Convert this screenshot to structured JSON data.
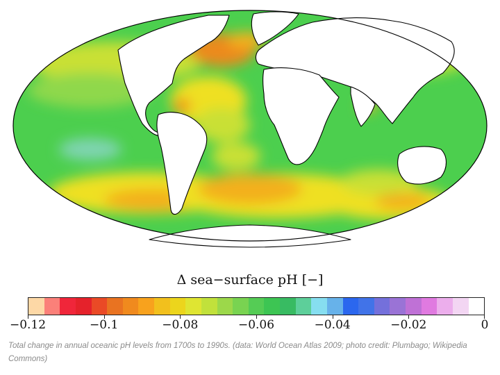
{
  "map": {
    "projection": "Mollweide",
    "colors": {
      "land": "#ffffff",
      "coastline": "#000000",
      "ocean_green": "#4ccf4e",
      "ocean_lightgreen": "#8fd84c",
      "ocean_yellowgreen": "#c9e036",
      "ocean_yellow": "#efe021",
      "ocean_orange": "#f3b01b",
      "ocean_darkorange": "#ec8a1d",
      "ocean_cyan": "#7fd4b0"
    }
  },
  "legend": {
    "title": "Δ sea−surface pH [−]",
    "ticks": [
      "−0.12",
      "−0.1",
      "−0.08",
      "−0.06",
      "−0.04",
      "−0.02",
      "0"
    ],
    "colors": [
      "#fdd8a6",
      "#fb8079",
      "#f0263a",
      "#e5222b",
      "#ea4a26",
      "#e97321",
      "#f08a1e",
      "#f8a21d",
      "#f2c01d",
      "#ecd51c",
      "#dfe532",
      "#c1e13b",
      "#9cd84a",
      "#79d351",
      "#55cc55",
      "#3dc553",
      "#38bb62",
      "#5dcf9a",
      "#86def0",
      "#67b2ea",
      "#2b67ee",
      "#4173e8",
      "#7470db",
      "#9a73d6",
      "#bf71d6",
      "#e07ae0",
      "#ecaeec",
      "#f3d6f3",
      "#ffffff"
    ]
  },
  "caption": "Total change in annual oceanic pH levels from 1700s to 1990s. (data: World Ocean Atlas 2009; photo credit: Plumbago; Wikipedia Commons)"
}
